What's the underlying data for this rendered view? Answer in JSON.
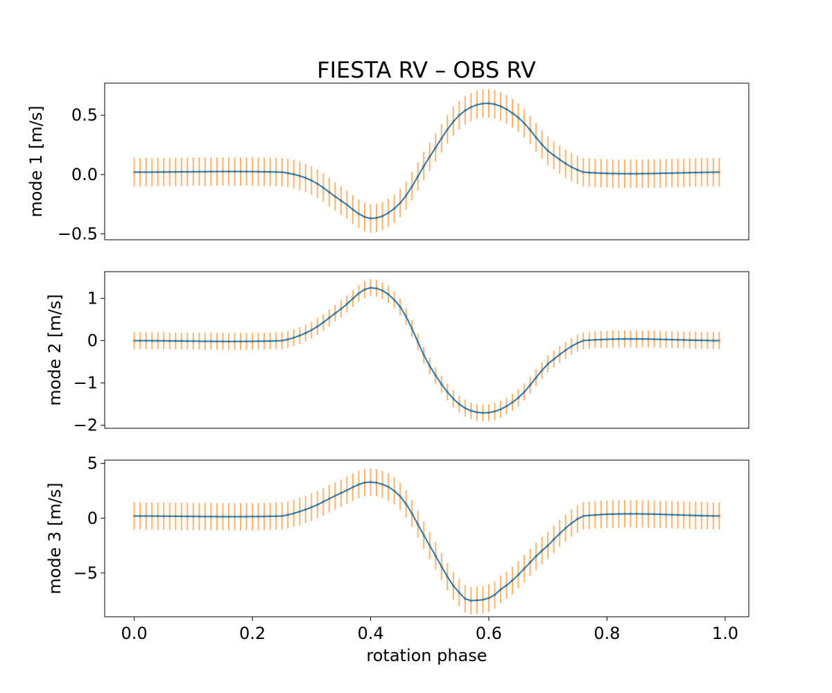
{
  "figure": {
    "title": "FIESTA RV – OBS RV",
    "colors": {
      "model": "#1f77b4",
      "observed": "#ff7f0e",
      "observed_alpha": 0.6
    }
  },
  "chart_data": [
    {
      "type": "line",
      "xlabel": "",
      "ylabel": "mode 1 [m/s]",
      "xlim": [
        -0.05,
        1.04
      ],
      "ylim": [
        -0.55,
        0.77
      ],
      "xticks": [],
      "yticks": [
        {
          "value": -0.5,
          "label": "−0.5"
        },
        {
          "value": 0.0,
          "label": "0.0"
        },
        {
          "value": 0.5,
          "label": "0.5"
        }
      ],
      "x_start": 0.0,
      "x_step": 0.01,
      "x_count": 100,
      "baseline": 0.02,
      "knots": [
        [
          0.0,
          0.02
        ],
        [
          0.25,
          0.02
        ],
        [
          0.3,
          -0.05
        ],
        [
          0.35,
          -0.22
        ],
        [
          0.4,
          -0.37
        ],
        [
          0.45,
          -0.24
        ],
        [
          0.5,
          0.15
        ],
        [
          0.55,
          0.5
        ],
        [
          0.6,
          0.6
        ],
        [
          0.65,
          0.48
        ],
        [
          0.7,
          0.2
        ],
        [
          0.76,
          0.02
        ],
        [
          1.0,
          0.02
        ]
      ],
      "yerr": 0.12,
      "grid": false
    },
    {
      "type": "line",
      "xlabel": "",
      "ylabel": "mode 2 [m/s]",
      "xlim": [
        -0.05,
        1.04
      ],
      "ylim": [
        -2.07,
        1.63
      ],
      "xticks": [],
      "yticks": [
        {
          "value": -2,
          "label": "−2"
        },
        {
          "value": -1,
          "label": "−1"
        },
        {
          "value": 0,
          "label": "0"
        },
        {
          "value": 1,
          "label": "1"
        }
      ],
      "x_start": 0.0,
      "x_step": 0.01,
      "x_count": 100,
      "baseline": 0.0,
      "knots": [
        [
          0.0,
          0.0
        ],
        [
          0.25,
          0.0
        ],
        [
          0.3,
          0.25
        ],
        [
          0.35,
          0.75
        ],
        [
          0.4,
          1.25
        ],
        [
          0.45,
          0.8
        ],
        [
          0.5,
          -0.6
        ],
        [
          0.55,
          -1.5
        ],
        [
          0.6,
          -1.7
        ],
        [
          0.65,
          -1.35
        ],
        [
          0.7,
          -0.55
        ],
        [
          0.76,
          0.0
        ],
        [
          1.0,
          0.0
        ]
      ],
      "yerr": 0.2,
      "grid": false
    },
    {
      "type": "line",
      "xlabel": "rotation phase",
      "ylabel": "mode 3 [m/s]",
      "xlim": [
        -0.05,
        1.04
      ],
      "ylim": [
        -9.0,
        5.3
      ],
      "xticks": [
        {
          "value": 0.0,
          "label": "0.0"
        },
        {
          "value": 0.2,
          "label": "0.2"
        },
        {
          "value": 0.4,
          "label": "0.4"
        },
        {
          "value": 0.6,
          "label": "0.6"
        },
        {
          "value": 0.8,
          "label": "0.8"
        },
        {
          "value": 1.0,
          "label": "1.0"
        }
      ],
      "yticks": [
        {
          "value": -5,
          "label": "−5"
        },
        {
          "value": 0,
          "label": "0"
        },
        {
          "value": 5,
          "label": "5"
        }
      ],
      "x_start": 0.0,
      "x_step": 0.01,
      "x_count": 100,
      "baseline": 0.2,
      "knots": [
        [
          0.0,
          0.2
        ],
        [
          0.25,
          0.2
        ],
        [
          0.3,
          1.0
        ],
        [
          0.35,
          2.3
        ],
        [
          0.4,
          3.3
        ],
        [
          0.45,
          2.0
        ],
        [
          0.5,
          -2.5
        ],
        [
          0.55,
          -6.8
        ],
        [
          0.58,
          -7.5
        ],
        [
          0.62,
          -6.5
        ],
        [
          0.7,
          -2.5
        ],
        [
          0.76,
          0.2
        ],
        [
          1.0,
          0.2
        ]
      ],
      "yerr": 1.25,
      "grid": false
    }
  ]
}
